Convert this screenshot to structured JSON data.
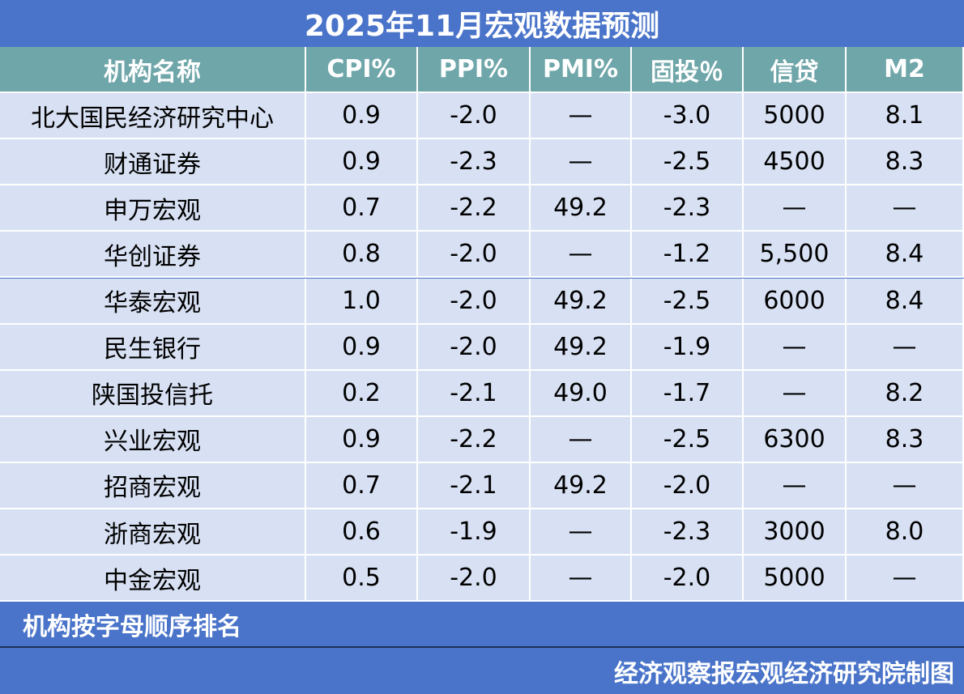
{
  "header": {
    "title": "2025年11月宏观数据预测"
  },
  "table": {
    "columns": [
      "机构名称",
      "CPI%",
      "PPI%",
      "PMI%",
      "固投％",
      "信贷",
      "M2"
    ],
    "rows": [
      [
        "北大国民经济研究中心",
        "0.9",
        "-2.0",
        "—",
        "-3.0",
        "5000",
        "8.1"
      ],
      [
        "财通证券",
        "0.9",
        "-2.3",
        "—",
        "-2.5",
        "4500",
        "8.3"
      ],
      [
        "申万宏观",
        "0.7",
        "-2.2",
        "49.2",
        "-2.3",
        "—",
        "—"
      ],
      [
        "华创证券",
        "0.8",
        "-2.0",
        "—",
        "-1.2",
        "5,500",
        "8.4"
      ],
      [
        "华泰宏观",
        "1.0",
        "-2.0",
        "49.2",
        "-2.5",
        "6000",
        "8.4"
      ],
      [
        "民生银行",
        "0.9",
        "-2.0",
        "49.2",
        "-1.9",
        "—",
        "—"
      ],
      [
        "陕国投信托",
        "0.2",
        "-2.1",
        "49.0",
        "-1.7",
        "—",
        "8.2"
      ],
      [
        "兴业宏观",
        "0.9",
        "-2.2",
        "—",
        "-2.5",
        "6300",
        "8.3"
      ],
      [
        "招商宏观",
        "0.7",
        "-2.1",
        "49.2",
        "-2.0",
        "—",
        "—"
      ],
      [
        "浙商宏观",
        "0.6",
        "-1.9",
        "—",
        "-2.3",
        "3000",
        "8.0"
      ],
      [
        "中金宏观",
        "0.5",
        "-2.0",
        "—",
        "-2.0",
        "5000",
        "—"
      ]
    ]
  },
  "footer": {
    "note": "机构按字母顺序排名",
    "credit": "经济观察报宏观经济研究院制图"
  }
}
